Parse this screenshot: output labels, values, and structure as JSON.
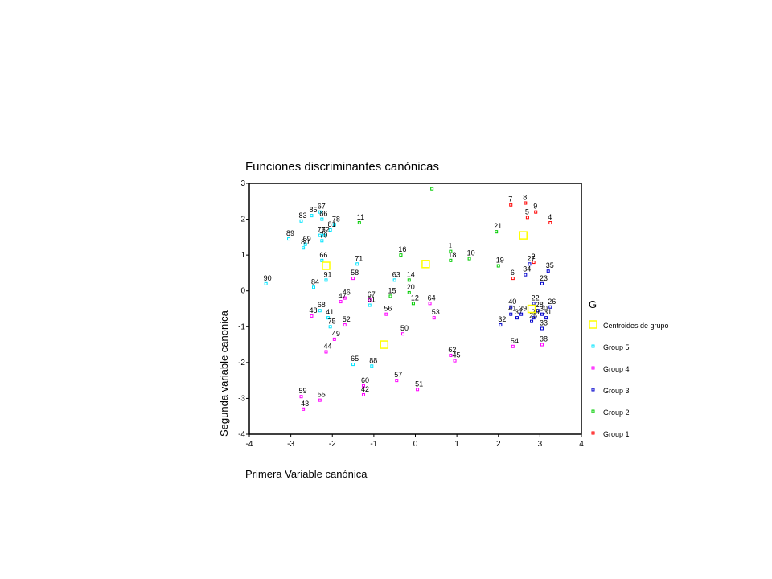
{
  "chart_data": {
    "type": "scatter",
    "title": "Funciones discriminantes canónicas",
    "xlabel": "Primera Variable canónica",
    "ylabel": "Segunda variable canonica",
    "xlim": [
      -4,
      4
    ],
    "ylim": [
      -4,
      3
    ],
    "xticks": [
      "-4",
      "-3",
      "-2",
      "-1",
      "0",
      "1",
      "2",
      "3",
      "4"
    ],
    "yticks": [
      "3",
      "2",
      "1",
      "0",
      "-1",
      "-2",
      "-3",
      "-4"
    ],
    "grid": false,
    "legend": {
      "title": "G",
      "placement": "right",
      "entries": [
        {
          "name": "Centroides de grupo",
          "color": "#ffff00",
          "marker": "square-large"
        },
        {
          "name": "Group 5",
          "color": "#00e5ff",
          "marker": "square"
        },
        {
          "name": "Group 4",
          "color": "#ff00ff",
          "marker": "square"
        },
        {
          "name": "Group 3",
          "color": "#0000cc",
          "marker": "square"
        },
        {
          "name": "Group 2",
          "color": "#00cc00",
          "marker": "square"
        },
        {
          "name": "Group 1",
          "color": "#ff0000",
          "marker": "square"
        }
      ]
    },
    "series": [
      {
        "name": "Group 1",
        "color": "#ff0000",
        "points": [
          {
            "label": "7",
            "x": 2.3,
            "y": 2.4
          },
          {
            "label": "8",
            "x": 2.65,
            "y": 2.45
          },
          {
            "label": "9",
            "x": 2.9,
            "y": 2.2
          },
          {
            "label": "5",
            "x": 2.7,
            "y": 2.05
          },
          {
            "label": "4",
            "x": 3.25,
            "y": 1.9
          },
          {
            "label": "2",
            "x": 2.85,
            "y": 0.8
          },
          {
            "label": "6",
            "x": 2.35,
            "y": 0.35
          }
        ]
      },
      {
        "name": "Group 2",
        "color": "#00cc00",
        "points": [
          {
            "label": "",
            "x": 0.4,
            "y": 2.85
          },
          {
            "label": "11",
            "x": -1.35,
            "y": 1.9
          },
          {
            "label": "21",
            "x": 1.95,
            "y": 1.65
          },
          {
            "label": "16",
            "x": -0.35,
            "y": 1.0
          },
          {
            "label": "1",
            "x": 0.85,
            "y": 1.1
          },
          {
            "label": "18",
            "x": 0.85,
            "y": 0.85
          },
          {
            "label": "10",
            "x": 1.3,
            "y": 0.9
          },
          {
            "label": "19",
            "x": 2.0,
            "y": 0.7
          },
          {
            "label": "14",
            "x": -0.15,
            "y": 0.3
          },
          {
            "label": "20",
            "x": -0.15,
            "y": -0.05
          },
          {
            "label": "15",
            "x": -0.6,
            "y": -0.15
          },
          {
            "label": "12",
            "x": -0.05,
            "y": -0.35
          }
        ]
      },
      {
        "name": "Group 3",
        "color": "#0000cc",
        "points": [
          {
            "label": "27",
            "x": 2.75,
            "y": 0.75
          },
          {
            "label": "34",
            "x": 2.65,
            "y": 0.45
          },
          {
            "label": "35",
            "x": 3.2,
            "y": 0.55
          },
          {
            "label": "23",
            "x": 3.05,
            "y": 0.2
          },
          {
            "label": "22",
            "x": 2.85,
            "y": -0.35
          },
          {
            "label": "40",
            "x": 2.3,
            "y": -0.45
          },
          {
            "label": "41",
            "x": 2.3,
            "y": -0.65
          },
          {
            "label": "37",
            "x": 2.45,
            "y": -0.75
          },
          {
            "label": "39",
            "x": 2.55,
            "y": -0.65
          },
          {
            "label": "26",
            "x": 3.25,
            "y": -0.45
          },
          {
            "label": "28",
            "x": 2.95,
            "y": -0.55
          },
          {
            "label": "30",
            "x": 3.05,
            "y": -0.65
          },
          {
            "label": "29",
            "x": 2.85,
            "y": -0.75
          },
          {
            "label": "32",
            "x": 2.05,
            "y": -0.95
          },
          {
            "label": "31",
            "x": 3.15,
            "y": -0.75
          },
          {
            "label": "25",
            "x": 2.8,
            "y": -0.85
          },
          {
            "label": "33",
            "x": 3.05,
            "y": -1.05
          }
        ]
      },
      {
        "name": "Group 4",
        "color": "#ff00ff",
        "points": [
          {
            "label": "58",
            "x": -1.5,
            "y": 0.35
          },
          {
            "label": "46",
            "x": -1.7,
            "y": -0.2
          },
          {
            "label": "47",
            "x": -1.8,
            "y": -0.3
          },
          {
            "label": "67",
            "x": -1.1,
            "y": -0.25
          },
          {
            "label": "48",
            "x": -2.5,
            "y": -0.7
          },
          {
            "label": "56",
            "x": -0.7,
            "y": -0.65
          },
          {
            "label": "53",
            "x": 0.45,
            "y": -0.75
          },
          {
            "label": "64",
            "x": 0.35,
            "y": -0.35
          },
          {
            "label": "52",
            "x": -1.7,
            "y": -0.95
          },
          {
            "label": "49",
            "x": -1.95,
            "y": -1.35
          },
          {
            "label": "50",
            "x": -0.3,
            "y": -1.2
          },
          {
            "label": "44",
            "x": -2.15,
            "y": -1.7
          },
          {
            "label": "54",
            "x": 2.35,
            "y": -1.55
          },
          {
            "label": "38",
            "x": 3.05,
            "y": -1.5
          },
          {
            "label": "62",
            "x": 0.85,
            "y": -1.8
          },
          {
            "label": "45",
            "x": 0.95,
            "y": -1.95
          },
          {
            "label": "60",
            "x": -1.25,
            "y": -2.65
          },
          {
            "label": "42",
            "x": -1.25,
            "y": -2.9
          },
          {
            "label": "57",
            "x": -0.45,
            "y": -2.5
          },
          {
            "label": "51",
            "x": 0.05,
            "y": -2.75
          },
          {
            "label": "59",
            "x": -2.75,
            "y": -2.95
          },
          {
            "label": "55",
            "x": -2.3,
            "y": -3.05
          },
          {
            "label": "43",
            "x": -2.7,
            "y": -3.3
          }
        ]
      },
      {
        "name": "Group 5",
        "color": "#00e5ff",
        "points": [
          {
            "label": "67",
            "x": -2.3,
            "y": 2.2
          },
          {
            "label": "85",
            "x": -2.5,
            "y": 2.1
          },
          {
            "label": "86",
            "x": -2.25,
            "y": 2.0
          },
          {
            "label": "83",
            "x": -2.75,
            "y": 1.95
          },
          {
            "label": "78",
            "x": -1.95,
            "y": 1.85
          },
          {
            "label": "81",
            "x": -2.05,
            "y": 1.7
          },
          {
            "label": "89",
            "x": -3.05,
            "y": 1.45
          },
          {
            "label": "76",
            "x": -2.3,
            "y": 1.55
          },
          {
            "label": "72",
            "x": -2.2,
            "y": 1.55
          },
          {
            "label": "70",
            "x": -2.25,
            "y": 1.4
          },
          {
            "label": "69",
            "x": -2.65,
            "y": 1.3
          },
          {
            "label": "80",
            "x": -2.7,
            "y": 1.2
          },
          {
            "label": "66",
            "x": -2.25,
            "y": 0.85
          },
          {
            "label": "71",
            "x": -1.4,
            "y": 0.75
          },
          {
            "label": "91",
            "x": -2.15,
            "y": 0.3
          },
          {
            "label": "90",
            "x": -3.6,
            "y": 0.2
          },
          {
            "label": "84",
            "x": -2.45,
            "y": 0.1
          },
          {
            "label": "63",
            "x": -0.5,
            "y": 0.3
          },
          {
            "label": "68",
            "x": -2.3,
            "y": -0.55
          },
          {
            "label": "41",
            "x": -2.1,
            "y": -0.75
          },
          {
            "label": "75",
            "x": -2.05,
            "y": -1.0
          },
          {
            "label": "61",
            "x": -1.1,
            "y": -0.4
          },
          {
            "label": "65",
            "x": -1.5,
            "y": -2.05
          },
          {
            "label": "88",
            "x": -1.05,
            "y": -2.1
          }
        ]
      },
      {
        "name": "Centroides de grupo",
        "color": "#ffff00",
        "points": [
          {
            "label": "",
            "x": 2.6,
            "y": 1.55
          },
          {
            "label": "",
            "x": 0.25,
            "y": 0.75
          },
          {
            "label": "",
            "x": -2.15,
            "y": 0.7
          },
          {
            "label": "",
            "x": 2.8,
            "y": -0.5
          },
          {
            "label": "",
            "x": -0.75,
            "y": -1.5
          }
        ]
      }
    ]
  }
}
